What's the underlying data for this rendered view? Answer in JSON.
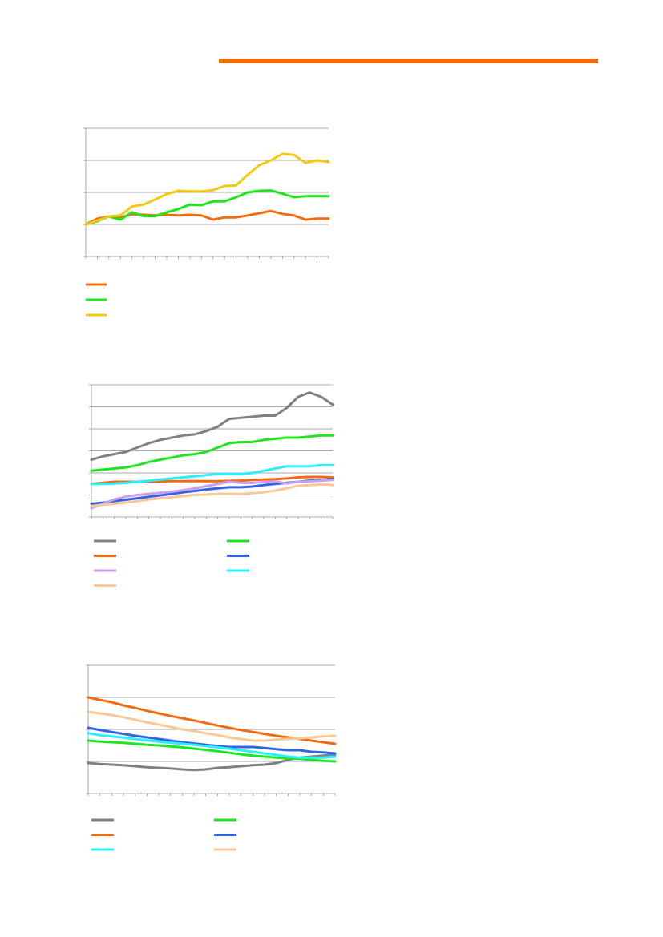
{
  "header": {
    "bar_color": "#f26b0f"
  },
  "chart_data": [
    {
      "type": "line",
      "title": "",
      "xlabel": "",
      "ylabel": "",
      "ylim": [
        -1,
        3
      ],
      "x_count": 22,
      "grid": "horizontal",
      "legend_placement": "bottom",
      "series": [
        {
          "color": "#f26b0f",
          "values": [
            0,
            0.18,
            0.25,
            0.22,
            0.32,
            0.3,
            0.28,
            0.3,
            0.28,
            0.3,
            0.28,
            0.15,
            0.22,
            0.22,
            0.28,
            0.35,
            0.42,
            0.33,
            0.28,
            0.15,
            0.18,
            0.18
          ]
        },
        {
          "color": "#1ee61e",
          "values": [
            0,
            0.1,
            0.25,
            0.15,
            0.38,
            0.26,
            0.26,
            0.38,
            0.48,
            0.62,
            0.6,
            0.72,
            0.72,
            0.85,
            1.0,
            1.05,
            1.06,
            0.96,
            0.85,
            0.88,
            0.88,
            0.88
          ]
        },
        {
          "color": "#f5c811",
          "values": [
            0,
            0.12,
            0.25,
            0.28,
            0.56,
            0.62,
            0.78,
            0.95,
            1.05,
            1.03,
            1.03,
            1.07,
            1.2,
            1.22,
            1.55,
            1.85,
            2.0,
            2.2,
            2.17,
            1.92,
            2.0,
            1.95
          ]
        }
      ]
    },
    {
      "type": "line",
      "title": "",
      "xlabel": "",
      "ylabel": "",
      "ylim": [
        0,
        6
      ],
      "x_count": 22,
      "grid": "horizontal",
      "legend_placement": "bottom",
      "series": [
        {
          "color": "#808080",
          "values": [
            2.6,
            2.75,
            2.85,
            2.95,
            3.15,
            3.35,
            3.5,
            3.6,
            3.7,
            3.75,
            3.9,
            4.1,
            4.45,
            4.5,
            4.55,
            4.6,
            4.6,
            4.95,
            5.45,
            5.65,
            5.45,
            5.1
          ]
        },
        {
          "color": "#1ee61e",
          "values": [
            2.1,
            2.15,
            2.2,
            2.25,
            2.35,
            2.5,
            2.6,
            2.7,
            2.8,
            2.85,
            2.95,
            3.15,
            3.35,
            3.4,
            3.4,
            3.5,
            3.55,
            3.6,
            3.6,
            3.65,
            3.7,
            3.7
          ]
        },
        {
          "color": "#f26b0f",
          "values": [
            1.5,
            1.55,
            1.6,
            1.6,
            1.6,
            1.62,
            1.62,
            1.63,
            1.63,
            1.63,
            1.63,
            1.63,
            1.64,
            1.65,
            1.68,
            1.7,
            1.72,
            1.75,
            1.8,
            1.82,
            1.82,
            1.8
          ]
        },
        {
          "color": "#3264e6",
          "values": [
            0.6,
            0.65,
            0.72,
            0.78,
            0.85,
            0.92,
            0.98,
            1.05,
            1.12,
            1.18,
            1.25,
            1.3,
            1.35,
            1.35,
            1.38,
            1.45,
            1.5,
            1.55,
            1.6,
            1.65,
            1.68,
            1.72
          ]
        },
        {
          "color": "#c8a0f0",
          "values": [
            0.4,
            0.6,
            0.8,
            0.92,
            1.0,
            1.05,
            1.1,
            1.15,
            1.22,
            1.3,
            1.4,
            1.5,
            1.6,
            1.55,
            1.55,
            1.58,
            1.62,
            1.52,
            1.6,
            1.62,
            1.65,
            1.68
          ]
        },
        {
          "color": "#28f0ff",
          "values": [
            1.5,
            1.5,
            1.52,
            1.55,
            1.6,
            1.65,
            1.7,
            1.75,
            1.8,
            1.85,
            1.9,
            1.95,
            1.95,
            1.95,
            2.0,
            2.1,
            2.2,
            2.3,
            2.3,
            2.3,
            2.35,
            2.35
          ]
        },
        {
          "color": "#fac896",
          "values": [
            0.5,
            0.55,
            0.6,
            0.65,
            0.72,
            0.8,
            0.85,
            0.9,
            0.95,
            1.0,
            1.02,
            1.05,
            1.05,
            1.05,
            1.08,
            1.12,
            1.2,
            1.3,
            1.42,
            1.45,
            1.48,
            1.45
          ]
        }
      ]
    },
    {
      "type": "line",
      "title": "",
      "xlabel": "",
      "ylabel": "",
      "ylim": [
        -1,
        3
      ],
      "x_count": 22,
      "grid": "horizontal",
      "legend_placement": "bottom",
      "series": [
        {
          "color": "#808080",
          "values": [
            -0.05,
            -0.08,
            -0.1,
            -0.12,
            -0.15,
            -0.18,
            -0.2,
            -0.22,
            -0.25,
            -0.27,
            -0.25,
            -0.2,
            -0.18,
            -0.15,
            -0.12,
            -0.1,
            -0.05,
            0.05,
            0.12,
            0.15,
            0.18,
            0.22
          ]
        },
        {
          "color": "#1ee61e",
          "values": [
            0.65,
            0.62,
            0.6,
            0.58,
            0.55,
            0.52,
            0.5,
            0.47,
            0.44,
            0.4,
            0.36,
            0.32,
            0.27,
            0.22,
            0.18,
            0.15,
            0.12,
            0.1,
            0.08,
            0.05,
            0.02,
            0.0
          ]
        },
        {
          "color": "#f26b0f",
          "values": [
            2.0,
            1.92,
            1.85,
            1.75,
            1.67,
            1.58,
            1.5,
            1.42,
            1.35,
            1.28,
            1.2,
            1.12,
            1.05,
            0.98,
            0.92,
            0.86,
            0.8,
            0.75,
            0.7,
            0.65,
            0.6,
            0.55
          ]
        },
        {
          "color": "#3264e6",
          "values": [
            1.05,
            0.98,
            0.92,
            0.86,
            0.8,
            0.75,
            0.7,
            0.65,
            0.6,
            0.56,
            0.52,
            0.48,
            0.45,
            0.45,
            0.45,
            0.42,
            0.38,
            0.35,
            0.35,
            0.3,
            0.28,
            0.25
          ]
        },
        {
          "color": "#28f0ff",
          "values": [
            0.88,
            0.82,
            0.78,
            0.74,
            0.7,
            0.66,
            0.62,
            0.58,
            0.55,
            0.52,
            0.48,
            0.44,
            0.4,
            0.35,
            0.3,
            0.25,
            0.2,
            0.15,
            0.12,
            0.12,
            0.12,
            0.15
          ]
        },
        {
          "color": "#fac896",
          "values": [
            1.55,
            1.5,
            1.45,
            1.38,
            1.3,
            1.22,
            1.15,
            1.08,
            1.0,
            0.95,
            0.88,
            0.82,
            0.75,
            0.7,
            0.65,
            0.65,
            0.68,
            0.7,
            0.72,
            0.75,
            0.78,
            0.8
          ]
        }
      ]
    }
  ]
}
